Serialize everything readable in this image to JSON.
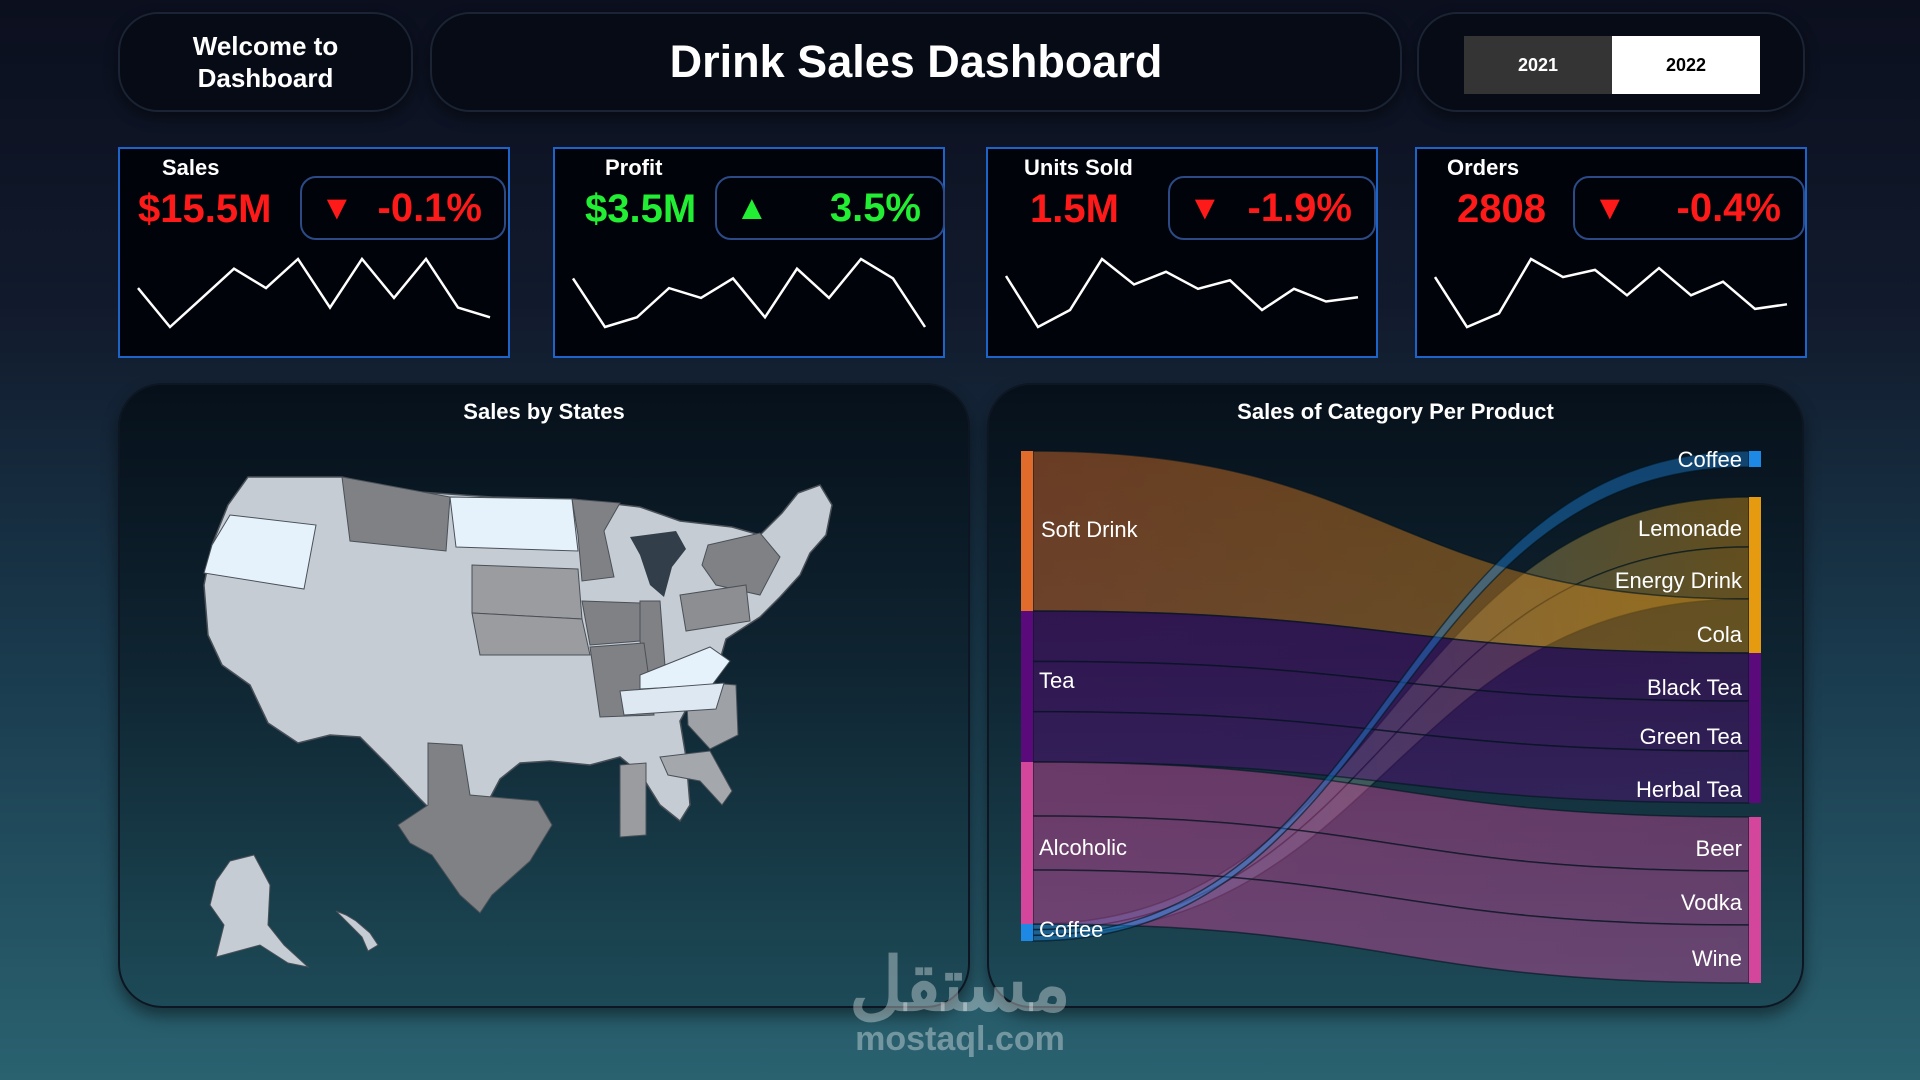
{
  "header": {
    "welcome": "Welcome to Dashboard",
    "title": "Drink Sales Dashboard",
    "years": [
      "2021",
      "2022"
    ],
    "selected_year": "2022"
  },
  "kpis": [
    {
      "label": "Sales",
      "value": "$15.5M",
      "delta": "-0.1%",
      "trend": "down",
      "value_color": "#ff1a1a",
      "delta_color": "#ff1a1a",
      "sparkline": [
        5,
        1,
        4,
        7,
        5,
        8,
        3,
        8,
        4,
        8,
        3,
        2
      ]
    },
    {
      "label": "Profit",
      "value": "$3.5M",
      "delta": "3.5%",
      "trend": "up",
      "value_color": "#22ee33",
      "delta_color": "#22ee33",
      "sparkline": [
        6,
        1,
        2,
        5,
        4,
        6,
        2,
        7,
        4,
        8,
        6,
        1
      ]
    },
    {
      "label": "Units Sold",
      "value": "1.5M",
      "delta": "-1.9%",
      "trend": "down",
      "value_color": "#ff1a1a",
      "delta_color": "#ff1a1a",
      "sparkline": [
        7,
        1,
        3,
        9,
        6,
        7.5,
        5.5,
        6.5,
        3,
        5.5,
        4,
        4.5
      ]
    },
    {
      "label": "Orders",
      "value": "2808",
      "delta": "-0.4%",
      "trend": "down",
      "value_color": "#ff1a1a",
      "delta_color": "#ff1a1a",
      "sparkline": [
        6,
        0.5,
        2,
        8,
        6,
        6.8,
        4,
        7,
        4,
        5.5,
        2.5,
        3
      ]
    }
  ],
  "map": {
    "title": "Sales by States",
    "highlight_color": "#e6f2fb",
    "dark_color": "#808184",
    "light_color": "#c5ccd4"
  },
  "sankey": {
    "title": "Sales of Category Per Product",
    "sources": [
      {
        "name": "Soft Drink",
        "color": "#e06b2a"
      },
      {
        "name": "Tea",
        "color": "#5a0a7a"
      },
      {
        "name": "Alcoholic",
        "color": "#d4459c"
      },
      {
        "name": "Coffee",
        "color": "#1e88e5"
      }
    ],
    "targets": [
      {
        "name": "Coffee",
        "color": "#1e88e5"
      },
      {
        "name": "Lemonade",
        "color": "#e59a10"
      },
      {
        "name": "Energy Drink",
        "color": "#e59a10"
      },
      {
        "name": "Cola",
        "color": "#e59a10"
      },
      {
        "name": "Black Tea",
        "color": "#5a0a7a"
      },
      {
        "name": "Green Tea",
        "color": "#5a0a7a"
      },
      {
        "name": "Herbal Tea",
        "color": "#5a0a7a"
      },
      {
        "name": "Beer",
        "color": "#d4459c"
      },
      {
        "name": "Vodka",
        "color": "#d4459c"
      },
      {
        "name": "Wine",
        "color": "#d4459c"
      }
    ]
  },
  "watermark": {
    "arabic": "مستقل",
    "latin": "mostaql.com"
  }
}
